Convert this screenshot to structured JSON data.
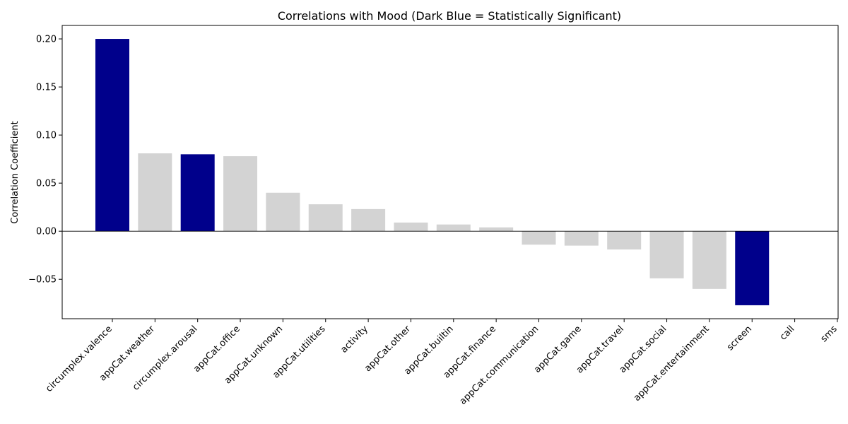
{
  "chart_data": {
    "type": "bar",
    "title": "Correlations with Mood (Dark Blue = Statistically Significant)",
    "xlabel": "",
    "ylabel": "Correlation Coefficient",
    "ylim": [
      -0.091,
      0.214
    ],
    "yticks": [
      -0.05,
      0.0,
      0.05,
      0.1,
      0.15,
      0.2
    ],
    "ytick_labels": [
      "−0.05",
      "0.00",
      "0.05",
      "0.10",
      "0.15",
      "0.20"
    ],
    "categories": [
      "circumplex.valence",
      "appCat.weather",
      "circumplex.arousal",
      "appCat.office",
      "appCat.unknown",
      "appCat.utilities",
      "activity",
      "appCat.other",
      "appCat.builtin",
      "appCat.finance",
      "appCat.communication",
      "appCat.game",
      "appCat.travel",
      "appCat.social",
      "appCat.entertainment",
      "screen",
      "call",
      "sms"
    ],
    "values": [
      0.2,
      0.081,
      0.08,
      0.078,
      0.04,
      0.028,
      0.023,
      0.009,
      0.007,
      0.004,
      -0.014,
      -0.015,
      -0.019,
      -0.049,
      -0.06,
      -0.077,
      null,
      null
    ],
    "significant": [
      true,
      false,
      true,
      false,
      false,
      false,
      false,
      false,
      false,
      false,
      false,
      false,
      false,
      false,
      false,
      true,
      false,
      false
    ],
    "colors": {
      "significant": "#00008b",
      "not_significant": "#d3d3d3"
    },
    "zero_line": true,
    "grid": false
  }
}
